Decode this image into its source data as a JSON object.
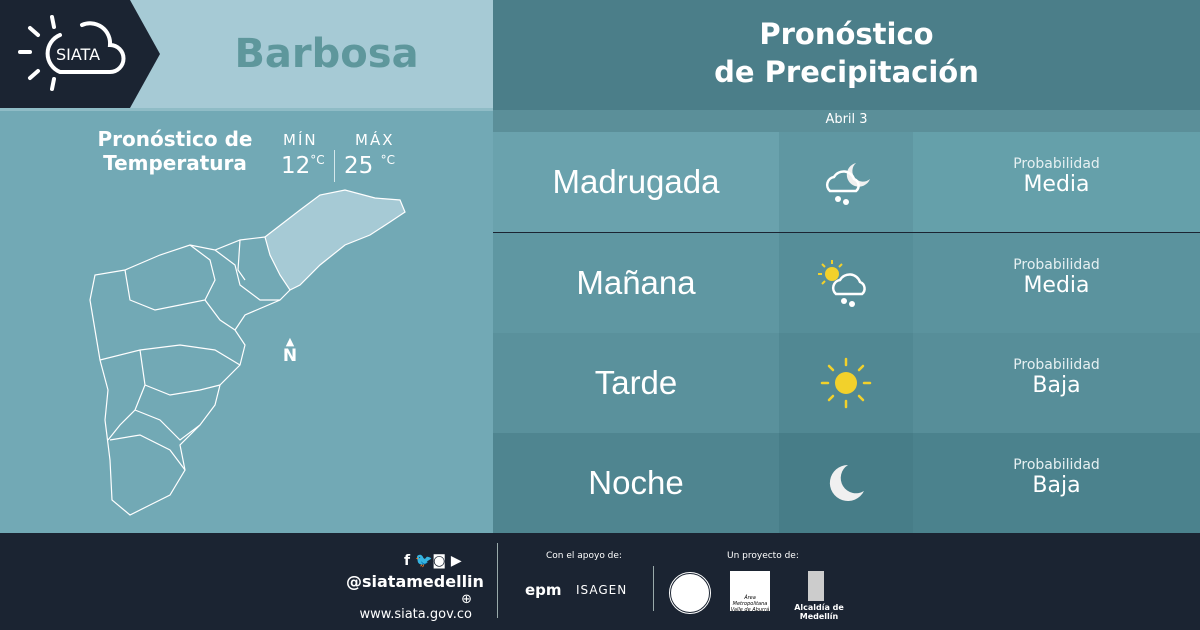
{
  "logo": {
    "text": "SIATA"
  },
  "city": "Barbosa",
  "temperature": {
    "title_line1": "Pronóstico de",
    "title_line2": "Temperatura",
    "min_label": "MÍN",
    "min_value": "12",
    "max_label": "MÁX",
    "max_value": "25",
    "unit": "°C"
  },
  "map": {
    "north_label": "N"
  },
  "precip": {
    "title_line1": "Pronóstico",
    "title_line2": "de Precipitación",
    "date": "Abril 3",
    "periods": [
      {
        "label": "Madrugada",
        "icon": "cloud-moon-rain-icon",
        "prob_label": "Probabilidad",
        "prob_value": "Media"
      },
      {
        "label": "Mañana",
        "icon": "sun-cloud-rain-icon",
        "prob_label": "Probabilidad",
        "prob_value": "Media"
      },
      {
        "label": "Tarde",
        "icon": "sun-icon",
        "prob_label": "Probabilidad",
        "prob_value": "Baja"
      },
      {
        "label": "Noche",
        "icon": "moon-icon",
        "prob_label": "Probabilidad",
        "prob_value": "Baja"
      }
    ]
  },
  "footer": {
    "handle": "@siatamedellin",
    "website": "www.siata.gov.co",
    "support_label": "Con el apoyo de:",
    "project_label": "Un proyecto de:",
    "sponsors": [
      "epm",
      "ISAGEN"
    ],
    "partners": [
      "Área Metropolitana Valle de Aburrá",
      "Alcaldía de Medellín"
    ]
  },
  "colors": {
    "dark": "#1b2432",
    "header_light": "#a6cad5",
    "panel": "#72a9b5",
    "city_text": "#5e979c",
    "sun": "#f2d12b"
  }
}
